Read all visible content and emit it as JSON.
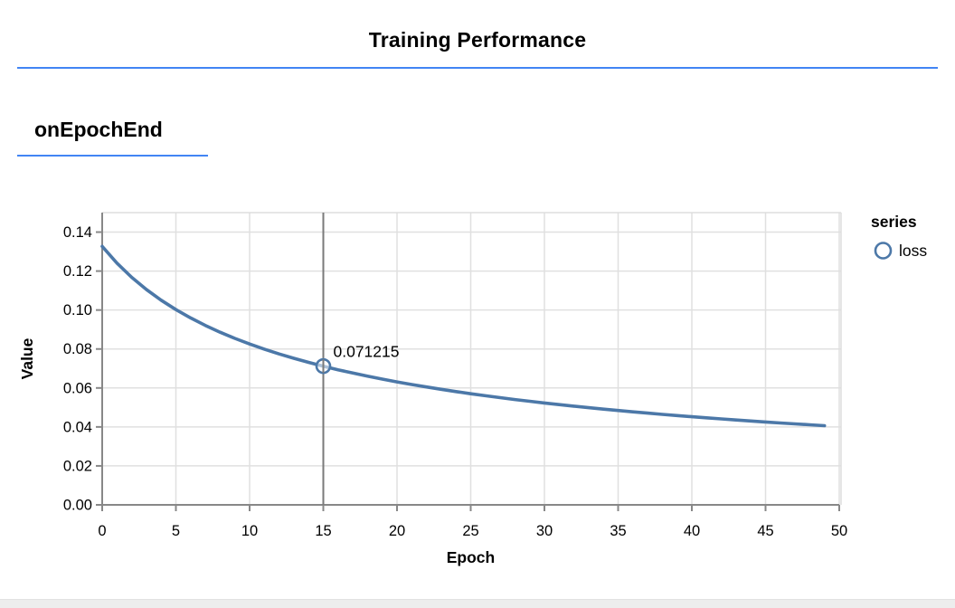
{
  "header": {
    "title": "Training Performance",
    "rule_color": "#4285f4"
  },
  "section": {
    "label": "onEpochEnd",
    "rule_color": "#4285f4"
  },
  "chart_data": {
    "type": "line",
    "xlabel": "Epoch",
    "ylabel": "Value",
    "xlim": [
      0,
      50
    ],
    "ylim": [
      0,
      0.15
    ],
    "x_ticks": [
      0,
      5,
      10,
      15,
      20,
      25,
      30,
      35,
      40,
      45,
      50
    ],
    "y_ticks": [
      0.0,
      0.02,
      0.04,
      0.06,
      0.08,
      0.1,
      0.12,
      0.14
    ],
    "grid": true,
    "legend": {
      "title": "series",
      "position": "right",
      "entries": [
        {
          "label": "loss",
          "color": "#4c78a8",
          "marker": "circle-outline"
        }
      ]
    },
    "series": [
      {
        "name": "loss",
        "color": "#4c78a8",
        "x": [
          0,
          1,
          2,
          3,
          4,
          5,
          6,
          7,
          8,
          9,
          10,
          11,
          12,
          13,
          14,
          15,
          16,
          17,
          18,
          19,
          20,
          21,
          22,
          23,
          24,
          25,
          26,
          27,
          28,
          29,
          30,
          31,
          32,
          33,
          34,
          35,
          36,
          37,
          38,
          39,
          40,
          41,
          42,
          43,
          44,
          45,
          46,
          47,
          48,
          49
        ],
        "y": [
          0.13269,
          0.1241,
          0.1168,
          0.11053,
          0.10506,
          0.10022,
          0.09593,
          0.09207,
          0.0886,
          0.08544,
          0.08256,
          0.07991,
          0.07747,
          0.07522,
          0.07312,
          0.071215,
          0.06935,
          0.06765,
          0.06604,
          0.06453,
          0.06311,
          0.06177,
          0.0605,
          0.05929,
          0.05814,
          0.05705,
          0.05601,
          0.05502,
          0.05407,
          0.05316,
          0.05229,
          0.05146,
          0.05066,
          0.04989,
          0.04915,
          0.04844,
          0.04775,
          0.04709,
          0.04645,
          0.04583,
          0.04523,
          0.04466,
          0.0441,
          0.04356,
          0.04304,
          0.04253,
          0.04204,
          0.04156,
          0.04109,
          0.04064
        ]
      }
    ],
    "hover": {
      "series": "loss",
      "x": 15,
      "y": 0.071215,
      "tooltip_text": "0.071215"
    },
    "colors": {
      "grid": "#e0e0e0",
      "view_border": "#dddddd",
      "axis": "#888888",
      "crosshair": "#7a7a7a",
      "text": "#000000"
    }
  }
}
